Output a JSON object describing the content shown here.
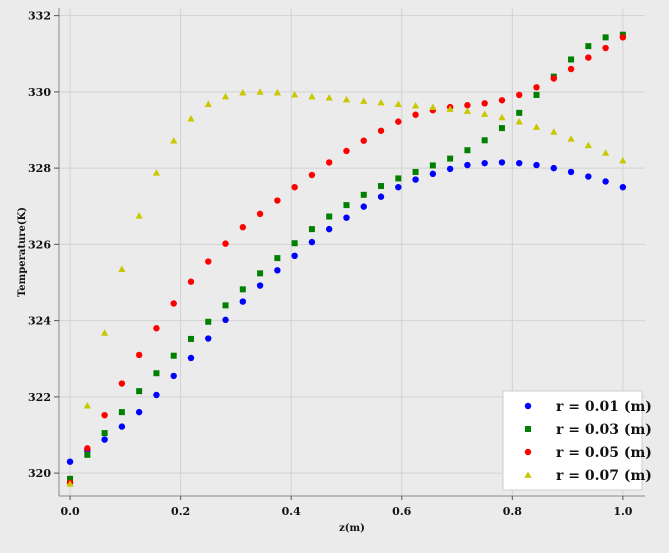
{
  "chart_data": {
    "type": "scatter",
    "xlabel": "z(m)",
    "ylabel": "Temperature(K)",
    "xlim": [
      -0.02,
      1.04
    ],
    "ylim": [
      319.4,
      332.2
    ],
    "xticks": [
      0.0,
      0.2,
      0.4,
      0.6,
      0.8,
      1.0
    ],
    "xtick_labels": [
      "0.0",
      "0.2",
      "0.4",
      "0.6",
      "0.8",
      "1.0"
    ],
    "yticks": [
      320,
      322,
      324,
      326,
      328,
      330,
      332
    ],
    "ytick_labels": [
      "320",
      "322",
      "324",
      "326",
      "328",
      "330",
      "332"
    ],
    "grid": true,
    "legend_position": "bottom-right",
    "x": [
      0.0,
      0.03125,
      0.0625,
      0.09375,
      0.125,
      0.15625,
      0.1875,
      0.21875,
      0.25,
      0.28125,
      0.3125,
      0.34375,
      0.375,
      0.40625,
      0.4375,
      0.46875,
      0.5,
      0.53125,
      0.5625,
      0.59375,
      0.625,
      0.65625,
      0.6875,
      0.71875,
      0.75,
      0.78125,
      0.8125,
      0.84375,
      0.875,
      0.90625,
      0.9375,
      0.96875,
      1.0
    ],
    "series": [
      {
        "name": "r = 0.01 (m)",
        "marker": "circle",
        "color": "#0000ff",
        "values": [
          320.3,
          320.6,
          320.88,
          321.22,
          321.6,
          322.05,
          322.55,
          323.02,
          323.53,
          324.02,
          324.5,
          324.92,
          325.32,
          325.7,
          326.06,
          326.4,
          326.7,
          326.99,
          327.25,
          327.5,
          327.7,
          327.85,
          327.98,
          328.08,
          328.13,
          328.15,
          328.13,
          328.08,
          328.0,
          327.9,
          327.78,
          327.65,
          327.5
        ]
      },
      {
        "name": "r = 0.03 (m)",
        "marker": "square",
        "color": "#008000",
        "values": [
          319.85,
          320.48,
          321.05,
          321.6,
          322.15,
          322.62,
          323.08,
          323.52,
          323.97,
          324.4,
          324.82,
          325.24,
          325.64,
          326.03,
          326.4,
          326.73,
          327.03,
          327.3,
          327.53,
          327.73,
          327.9,
          328.07,
          328.25,
          328.47,
          328.73,
          329.05,
          329.45,
          329.92,
          330.4,
          330.85,
          331.2,
          331.43,
          331.5
        ]
      },
      {
        "name": "r = 0.05 (m)",
        "marker": "circle",
        "color": "#ff0000",
        "values": [
          319.75,
          320.65,
          321.52,
          322.35,
          323.1,
          323.8,
          324.45,
          325.02,
          325.55,
          326.02,
          326.45,
          326.8,
          327.15,
          327.5,
          327.82,
          328.15,
          328.45,
          328.72,
          328.98,
          329.22,
          329.4,
          329.52,
          329.6,
          329.65,
          329.7,
          329.78,
          329.92,
          330.12,
          330.35,
          330.6,
          330.9,
          331.15,
          331.43
        ]
      },
      {
        "name": "r = 0.07 (m)",
        "marker": "triangle",
        "color": "#c8c800",
        "values": [
          319.72,
          321.77,
          323.68,
          325.35,
          326.75,
          327.88,
          328.72,
          329.3,
          329.68,
          329.88,
          329.98,
          330.0,
          329.98,
          329.93,
          329.88,
          329.85,
          329.8,
          329.76,
          329.72,
          329.68,
          329.64,
          329.6,
          329.55,
          329.5,
          329.42,
          329.33,
          329.22,
          329.08,
          328.95,
          328.77,
          328.6,
          328.4,
          328.2
        ]
      }
    ]
  }
}
